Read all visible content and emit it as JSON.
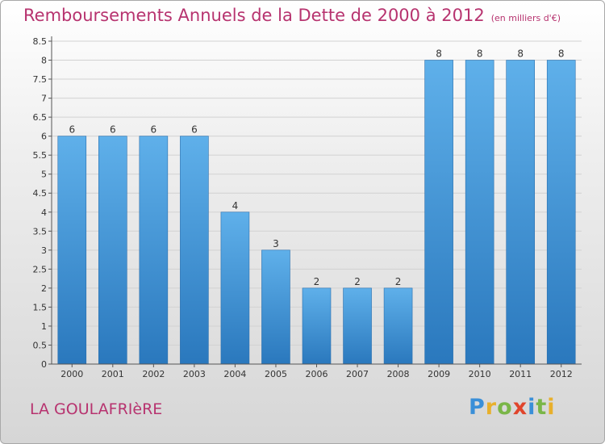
{
  "chart_data": {
    "type": "bar",
    "title": "Remboursements Annuels de la Dette de 2000 à 2012",
    "unit": "(en milliers d'€)",
    "categories": [
      "2000",
      "2001",
      "2002",
      "2003",
      "2004",
      "2005",
      "2006",
      "2007",
      "2008",
      "2009",
      "2010",
      "2011",
      "2012"
    ],
    "values": [
      6,
      6,
      6,
      6,
      4,
      3,
      2,
      2,
      2,
      8,
      8,
      8,
      8
    ],
    "ylim": [
      0,
      8.5
    ],
    "yticks": [
      "0",
      "0.5",
      "1",
      "1.5",
      "2",
      "2.5",
      "3",
      "3.5",
      "4",
      "4.5",
      "5",
      "5.5",
      "6",
      "6.5",
      "7",
      "7.5",
      "8",
      "8.5"
    ],
    "xlabel": "",
    "ylabel": "",
    "bar_color": "#3a8fd0"
  },
  "footer": {
    "place": "LA GOULAFRIèRE",
    "brand": "Proxiti"
  }
}
